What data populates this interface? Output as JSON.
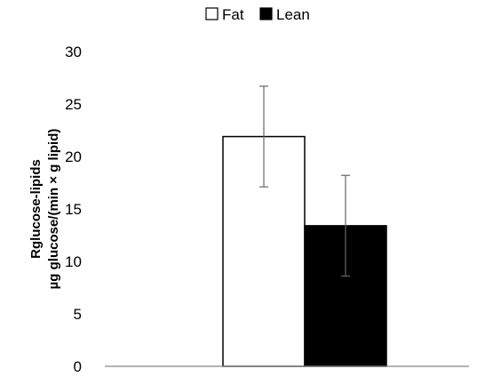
{
  "chart_data": {
    "type": "bar",
    "categories": [
      ""
    ],
    "series": [
      {
        "name": "Fat",
        "values": [
          21.9
        ],
        "errors": [
          4.8
        ],
        "color": "#ffffff"
      },
      {
        "name": "Lean",
        "values": [
          13.4
        ],
        "errors": [
          4.8
        ],
        "color": "#000000"
      }
    ],
    "ylabel": [
      "Rglucose-lipids",
      "µg glucose/(min × g lipid)"
    ],
    "xlabel": "",
    "ylim": [
      0,
      30
    ],
    "yticks": [
      0,
      5,
      10,
      15,
      20,
      25,
      30
    ],
    "legend": "top-center",
    "grid": false
  }
}
